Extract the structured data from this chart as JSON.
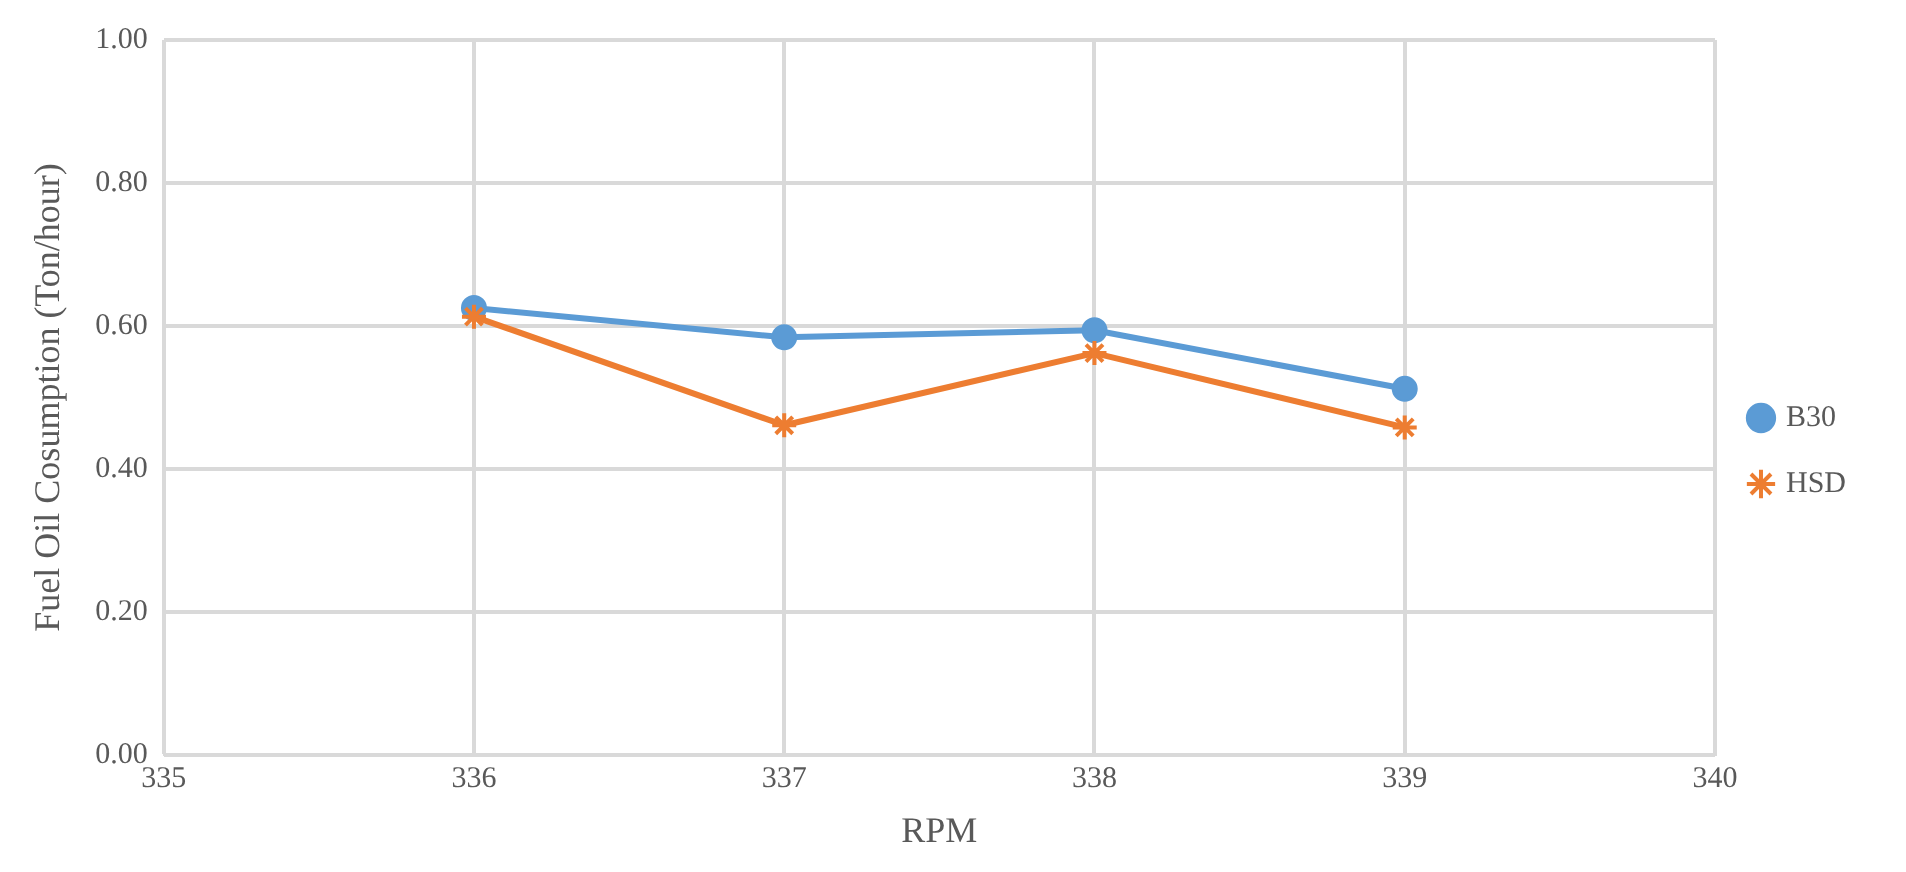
{
  "chart_data": {
    "type": "line",
    "xlabel": "RPM",
    "ylabel": "Fuel Oil Cosumption (Ton/hour)",
    "x": [
      336,
      337,
      338,
      339
    ],
    "xlim": [
      335,
      340
    ],
    "xticks": [
      335,
      336,
      337,
      338,
      339,
      340
    ],
    "ylim": [
      0,
      1
    ],
    "yticks": [
      {
        "value": 0,
        "label": "0.00"
      },
      {
        "value": 0.2,
        "label": "0.20"
      },
      {
        "value": 0.4,
        "label": "0.40"
      },
      {
        "value": 0.6,
        "label": "0.60"
      },
      {
        "value": 0.8,
        "label": "0.80"
      },
      {
        "value": 1,
        "label": "1.00"
      }
    ],
    "grid": true,
    "legend": "right",
    "line_style": "solid",
    "series": [
      {
        "name": "B30",
        "color": "#5b9bd5",
        "marker": "circle",
        "values": [
          0.625,
          0.584,
          0.594,
          0.512
        ]
      },
      {
        "name": "HSD",
        "color": "#ed7d31",
        "marker": "cross",
        "values": [
          0.613,
          0.461,
          0.562,
          0.458
        ]
      }
    ]
  }
}
